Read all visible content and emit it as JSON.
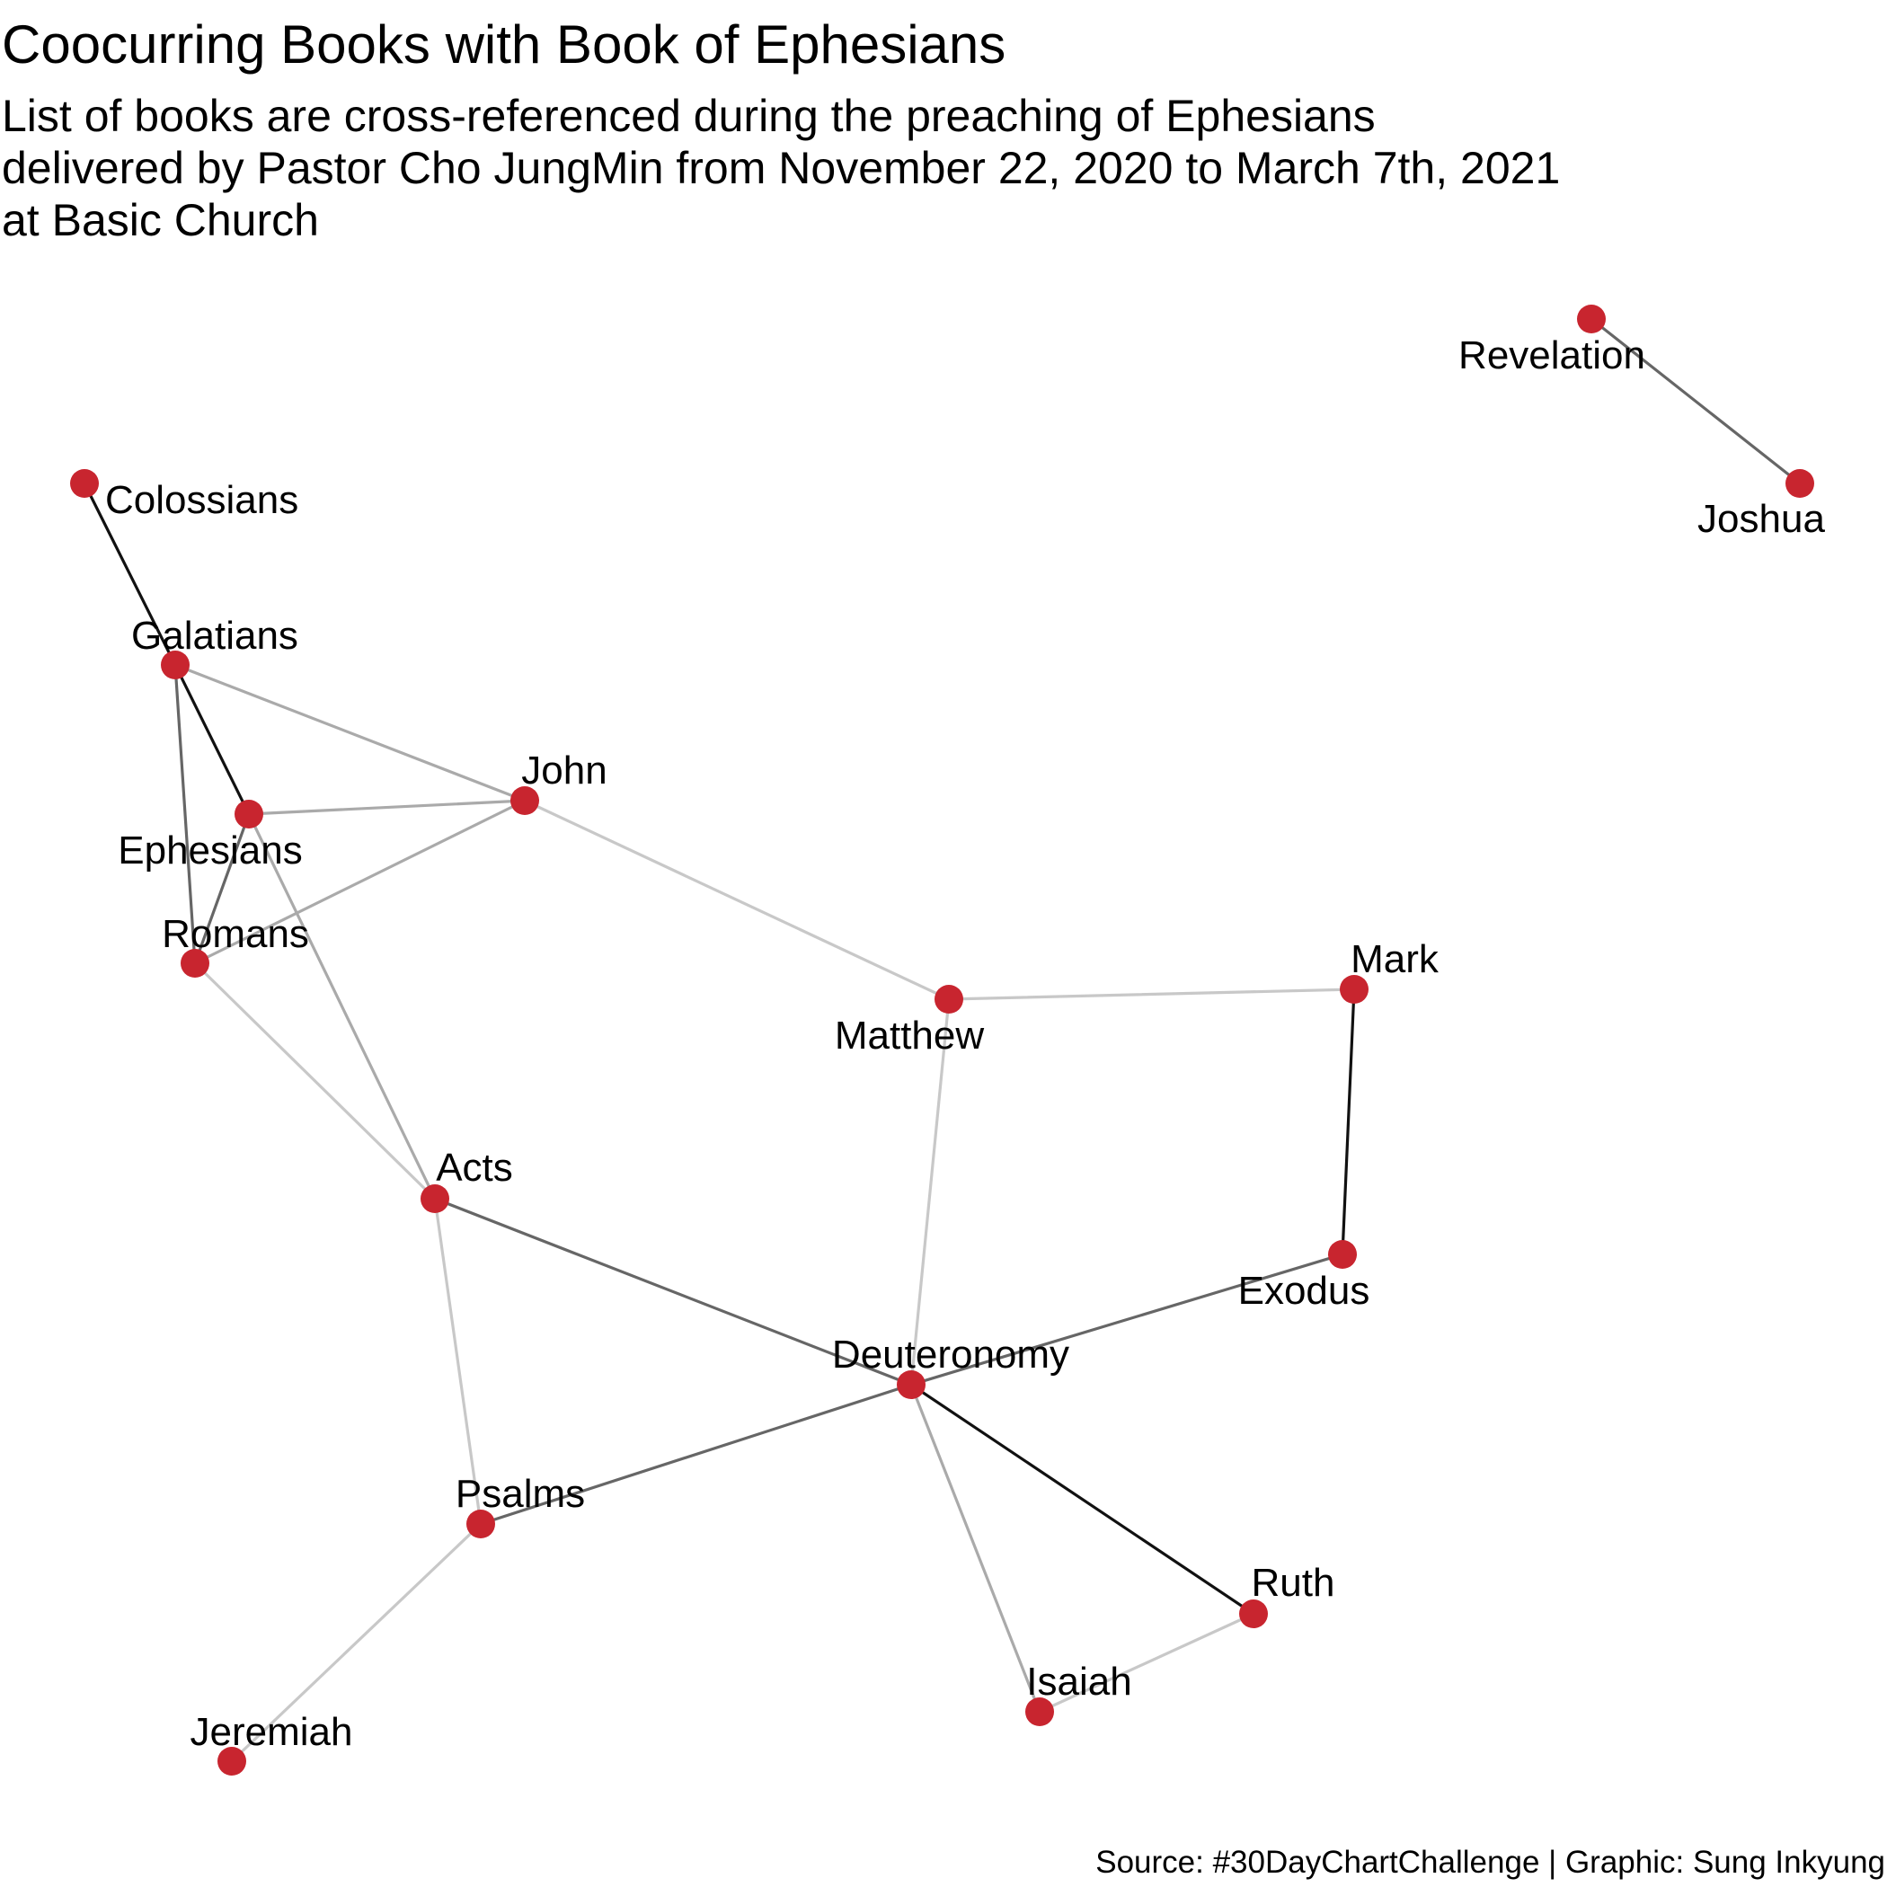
{
  "title": "Coocurring Books with Book of Ephesians",
  "subtitle_lines": [
    "List of books are cross-referenced during the preaching of Ephesians",
    "delivered by Pastor Cho JungMin from  November 22, 2020 to March 7th, 2021",
    "at Basic Church"
  ],
  "caption": "Source: #30DayChartChallenge | Graphic: Sung Inkyung",
  "colors": {
    "node": "#c8252f",
    "edge_strong": "#111111",
    "edge_medium": "#666666",
    "edge_light": "#aaaaaa",
    "edge_faint": "#c8c8c8"
  },
  "chart_data": {
    "type": "network",
    "nodes": [
      {
        "id": "Revelation"
      },
      {
        "id": "Joshua"
      },
      {
        "id": "Colossians"
      },
      {
        "id": "Galatians"
      },
      {
        "id": "John"
      },
      {
        "id": "Ephesians"
      },
      {
        "id": "Romans"
      },
      {
        "id": "Matthew"
      },
      {
        "id": "Mark"
      },
      {
        "id": "Acts"
      },
      {
        "id": "Exodus"
      },
      {
        "id": "Deuteronomy"
      },
      {
        "id": "Psalms"
      },
      {
        "id": "Ruth"
      },
      {
        "id": "Isaiah"
      },
      {
        "id": "Jeremiah"
      }
    ],
    "edges": [
      {
        "source": "Revelation",
        "target": "Joshua",
        "strength": "medium"
      },
      {
        "source": "Colossians",
        "target": "Galatians",
        "strength": "strong"
      },
      {
        "source": "Galatians",
        "target": "Ephesians",
        "strength": "strong"
      },
      {
        "source": "Galatians",
        "target": "John",
        "strength": "light"
      },
      {
        "source": "Galatians",
        "target": "Romans",
        "strength": "medium"
      },
      {
        "source": "Ephesians",
        "target": "John",
        "strength": "light"
      },
      {
        "source": "Ephesians",
        "target": "Romans",
        "strength": "medium"
      },
      {
        "source": "Ephesians",
        "target": "Acts",
        "strength": "light"
      },
      {
        "source": "Romans",
        "target": "John",
        "strength": "light"
      },
      {
        "source": "Romans",
        "target": "Acts",
        "strength": "faint"
      },
      {
        "source": "John",
        "target": "Matthew",
        "strength": "faint"
      },
      {
        "source": "Matthew",
        "target": "Mark",
        "strength": "faint"
      },
      {
        "source": "Matthew",
        "target": "Deuteronomy",
        "strength": "faint"
      },
      {
        "source": "Mark",
        "target": "Exodus",
        "strength": "strong"
      },
      {
        "source": "Exodus",
        "target": "Deuteronomy",
        "strength": "medium"
      },
      {
        "source": "Acts",
        "target": "Deuteronomy",
        "strength": "medium"
      },
      {
        "source": "Acts",
        "target": "Psalms",
        "strength": "faint"
      },
      {
        "source": "Deuteronomy",
        "target": "Psalms",
        "strength": "medium"
      },
      {
        "source": "Deuteronomy",
        "target": "Ruth",
        "strength": "strong"
      },
      {
        "source": "Deuteronomy",
        "target": "Isaiah",
        "strength": "light"
      },
      {
        "source": "Ruth",
        "target": "Isaiah",
        "strength": "faint"
      },
      {
        "source": "Psalms",
        "target": "Jeremiah",
        "strength": "faint"
      }
    ]
  }
}
